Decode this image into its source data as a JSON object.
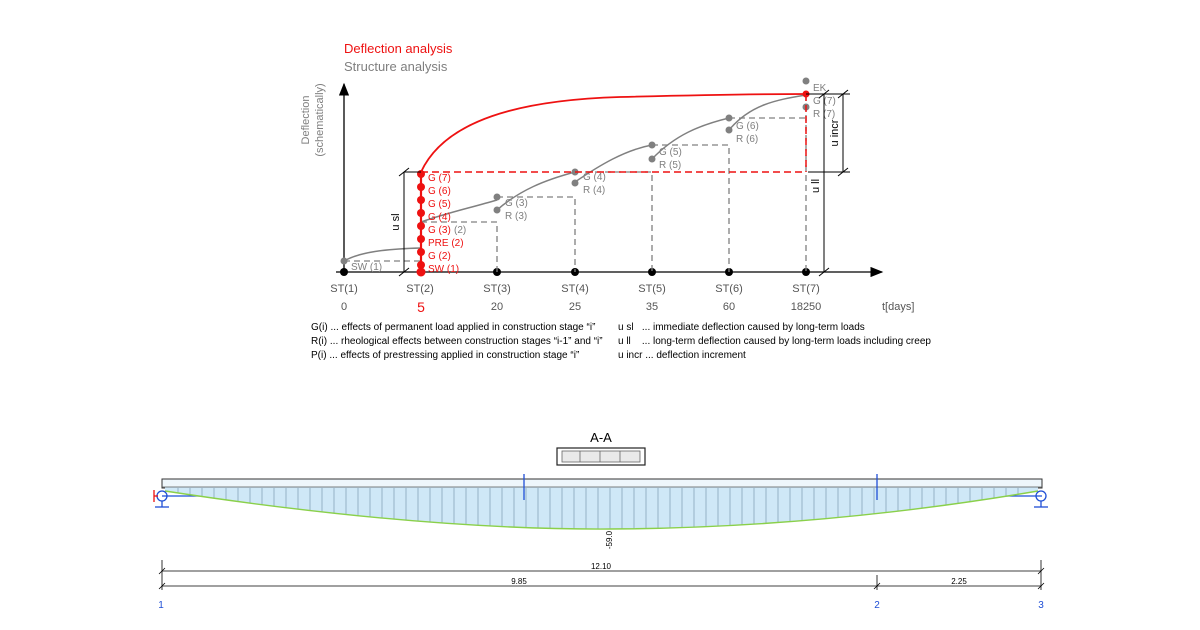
{
  "legend": {
    "deflection_analysis": "Deflection analysis",
    "structure_analysis": "Structure analysis",
    "deflection_color": "#ee1111",
    "structure_color": "#7f7f7f"
  },
  "chart": {
    "y_axis_title_1": "Deflection",
    "y_axis_title_2": "(schematically)",
    "stages": [
      "ST(1)",
      "ST(2)",
      "ST(3)",
      "ST(4)",
      "ST(5)",
      "ST(6)",
      "ST(7)"
    ],
    "days": [
      "0",
      "5",
      "20",
      "25",
      "35",
      "60",
      "18250"
    ],
    "x_unit": "t[days]",
    "red_labels": [
      "G (7)",
      "G (6)",
      "G (5)",
      "G (4)",
      "G (3)",
      "PRE (2)",
      "G (2)",
      "SW (1)"
    ],
    "red_suffix_2": "(2)",
    "sw1_gray": "SW (1)",
    "gray_labels": {
      "g3": "G (3)",
      "r3": "R (3)",
      "g4": "G (4)",
      "r4": "R (4)",
      "g5": "G (5)",
      "r5": "R (5)",
      "g6": "G (6)",
      "r6": "R (6)",
      "ek": "EK",
      "g7": "G (7)",
      "r7": "R (7)"
    },
    "dim_labels": {
      "u_sl": "u sl",
      "u_ll": "u ll",
      "u_incr": "u incr"
    }
  },
  "definitions": {
    "left": [
      "G(i) ... effects of permanent load applied in construction stage “i”",
      "R(i) ... rheological effects between construction stages “i-1” and “i”",
      "P(i) ... effects of prestressing applied in construction stage “i”"
    ],
    "right": [
      "u sl   ... immediate deflection caused by long-term loads",
      "u ll    ... long-term deflection caused by long-term loads including creep",
      "u incr ... deflection increment"
    ]
  },
  "beam": {
    "section_title": "A-A",
    "max_value": "-59.0",
    "total_span": "12.10",
    "spans": [
      "9.85",
      "2.25"
    ],
    "nodes": [
      "1",
      "2",
      "3"
    ],
    "fill_color": "#cfe8f7",
    "outline_color": "#8ad04a",
    "node_color": "#1f4fd6"
  }
}
